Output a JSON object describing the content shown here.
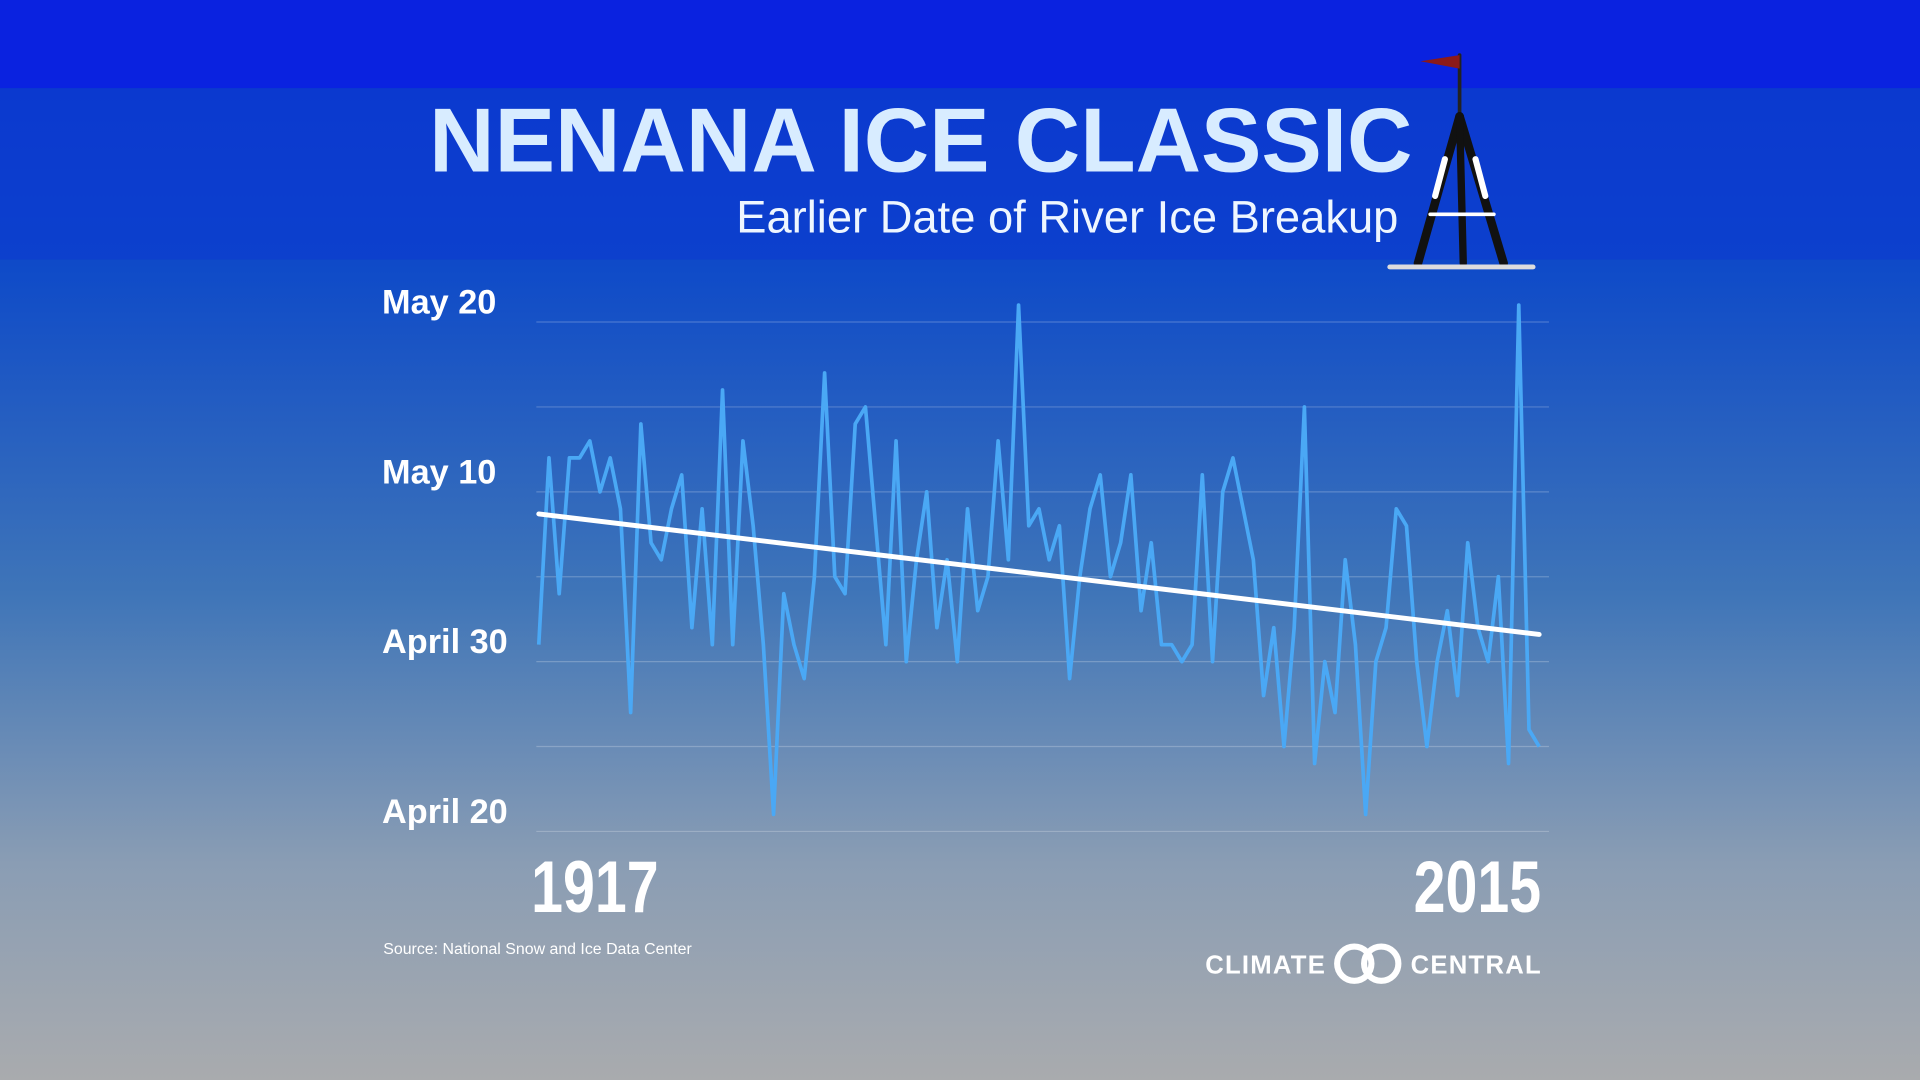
{
  "chart_data": {
    "type": "line",
    "title": "NENANA ICE CLASSIC",
    "subtitle": "Earlier Date of River Ice Breakup",
    "source": "Source: National Snow and Ice Data Center",
    "x": [
      1917,
      1918,
      1919,
      1920,
      1921,
      1922,
      1923,
      1924,
      1925,
      1926,
      1927,
      1928,
      1929,
      1930,
      1931,
      1932,
      1933,
      1934,
      1935,
      1936,
      1937,
      1938,
      1939,
      1940,
      1941,
      1942,
      1943,
      1944,
      1945,
      1946,
      1947,
      1948,
      1949,
      1950,
      1951,
      1952,
      1953,
      1954,
      1955,
      1956,
      1957,
      1958,
      1959,
      1960,
      1961,
      1962,
      1963,
      1964,
      1965,
      1966,
      1967,
      1968,
      1969,
      1970,
      1971,
      1972,
      1973,
      1974,
      1975,
      1976,
      1977,
      1978,
      1979,
      1980,
      1981,
      1982,
      1983,
      1984,
      1985,
      1986,
      1987,
      1988,
      1989,
      1990,
      1991,
      1992,
      1993,
      1994,
      1995,
      1996,
      1997,
      1998,
      1999,
      2000,
      2001,
      2002,
      2003,
      2004,
      2005,
      2006,
      2007,
      2008,
      2009,
      2010,
      2011,
      2012,
      2013,
      2014,
      2015
    ],
    "series": [
      {
        "color": "#4aa8f5",
        "values": [
          121,
          132,
          124,
          132,
          132,
          133,
          130,
          132,
          129,
          117,
          134,
          127,
          126,
          129,
          131,
          122,
          129,
          121,
          136,
          121,
          133,
          128,
          121,
          111,
          124,
          121,
          119,
          125,
          137,
          125,
          124,
          134,
          135,
          128,
          121,
          133,
          120,
          126,
          130,
          122,
          126,
          120,
          129,
          123,
          125,
          133,
          126,
          141,
          128,
          129,
          126,
          128,
          119,
          125,
          129,
          131,
          125,
          127,
          131,
          123,
          127,
          121,
          121,
          120,
          121,
          131,
          120,
          130,
          132,
          129,
          126,
          118,
          122,
          115,
          122,
          135,
          114,
          120,
          117,
          126,
          121,
          111,
          120,
          122,
          129,
          128,
          120,
          115,
          120,
          123,
          118,
          127,
          122,
          120,
          125,
          114,
          141,
          116,
          115
        ]
      }
    ],
    "trend": {
      "color": "#ffffff",
      "x": [
        1917,
        2015
      ],
      "values": [
        128.7,
        121.6
      ]
    },
    "xlim": [
      1917,
      2015
    ],
    "xticks": [
      1917,
      2015
    ],
    "ylim": [
      110,
      140
    ],
    "yticks": [
      {
        "value": 110,
        "label": "April 20"
      },
      {
        "value": 120,
        "label": "April 30"
      },
      {
        "value": 130,
        "label": "May 10"
      },
      {
        "value": 140,
        "label": "May 20"
      }
    ],
    "yminorticks": [
      115,
      125,
      135
    ],
    "grid": true
  },
  "branding": {
    "left": "CLIMATE",
    "right": "CENTRAL"
  }
}
